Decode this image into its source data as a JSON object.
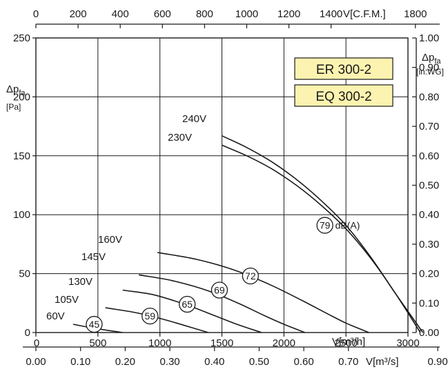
{
  "chart_data": {
    "type": "line",
    "frame": {
      "x_range": [
        0,
        3000
      ],
      "y_range": [
        0,
        250
      ]
    },
    "axes": {
      "bottom_primary": {
        "title": "V[m³/h]",
        "ticks": [
          {
            "v": 0,
            "label": "0"
          },
          {
            "v": 500,
            "label": "500"
          },
          {
            "v": 1000,
            "label": "1000"
          },
          {
            "v": 1500,
            "label": "1500"
          },
          {
            "v": 2000,
            "label": "2000"
          },
          {
            "v": 2500,
            "label": "2500"
          },
          {
            "v": 3000,
            "label": "3000"
          }
        ]
      },
      "bottom_secondary": {
        "title": "V[m³/s]",
        "ticks": [
          {
            "v": 0,
            "label": "0.00"
          },
          {
            "v": 360,
            "label": "0.10"
          },
          {
            "v": 720,
            "label": "0.20"
          },
          {
            "v": 1080,
            "label": "0.30"
          },
          {
            "v": 1440,
            "label": "0.40"
          },
          {
            "v": 1800,
            "label": "0.50"
          },
          {
            "v": 2160,
            "label": "0.60"
          },
          {
            "v": 2520,
            "label": "0.70"
          },
          {
            "v": 3240,
            "label": "0.90"
          }
        ]
      },
      "top": {
        "title": "V[C.F.M.]",
        "ticks": [
          {
            "v": 0,
            "label": "0"
          },
          {
            "v": 340,
            "label": "200"
          },
          {
            "v": 680,
            "label": "400"
          },
          {
            "v": 1020,
            "label": "600"
          },
          {
            "v": 1360,
            "label": "800"
          },
          {
            "v": 1700,
            "label": "1000"
          },
          {
            "v": 2040,
            "label": "1200"
          },
          {
            "v": 2380,
            "label": "1400"
          },
          {
            "v": 3060,
            "label": "1800"
          }
        ]
      },
      "left": {
        "title": "Δp",
        "title_sub": "fa",
        "unit": "[Pa]",
        "ticks": [
          {
            "v": 0,
            "label": "0"
          },
          {
            "v": 50,
            "label": "50"
          },
          {
            "v": 100,
            "label": "100"
          },
          {
            "v": 150,
            "label": "150"
          },
          {
            "v": 200,
            "label": "200"
          },
          {
            "v": 250,
            "label": "250"
          }
        ]
      },
      "right": {
        "title": "Δp",
        "title_sub": "fa",
        "unit": "[in.WG]",
        "ticks": [
          {
            "v": 0,
            "label": "0.00"
          },
          {
            "v": 25,
            "label": "0.10"
          },
          {
            "v": 50,
            "label": "0.20"
          },
          {
            "v": 75,
            "label": "0.30"
          },
          {
            "v": 100,
            "label": "0.40"
          },
          {
            "v": 125,
            "label": "0.50"
          },
          {
            "v": 150,
            "label": "0.60"
          },
          {
            "v": 175,
            "label": "0.70"
          },
          {
            "v": 200,
            "label": "0.80"
          },
          {
            "v": 225,
            "label": "0.90"
          },
          {
            "v": 250,
            "label": "1.00"
          }
        ]
      }
    },
    "grid": true,
    "model_labels": [
      "ER 300-2",
      "EQ 300-2"
    ],
    "series": [
      {
        "name": "240V",
        "x": [
          1500,
          1700,
          1900,
          2100,
          2300,
          2500,
          2700,
          2900,
          3120
        ],
        "y": [
          167,
          157,
          145,
          130,
          112,
          91,
          64,
          33,
          0
        ]
      },
      {
        "name": "230V",
        "x": [
          1500,
          1700,
          1900,
          2100,
          2300,
          2500,
          2700,
          2900,
          3100
        ],
        "y": [
          159,
          150,
          139,
          125,
          108,
          88,
          63,
          33,
          0
        ]
      },
      {
        "name": "160V",
        "x": [
          980,
          1300,
          1600,
          1900,
          2150,
          2350,
          2500,
          2685
        ],
        "y": [
          68,
          62,
          53,
          40,
          27,
          16,
          8,
          0
        ]
      },
      {
        "name": "145V",
        "x": [
          830,
          1100,
          1400,
          1650,
          1850,
          2000,
          2170
        ],
        "y": [
          49,
          44,
          35,
          24,
          14,
          7,
          0
        ]
      },
      {
        "name": "130V",
        "x": [
          700,
          950,
          1200,
          1450,
          1620,
          1820
        ],
        "y": [
          36,
          32,
          24,
          14,
          7,
          0
        ]
      },
      {
        "name": "105V",
        "x": [
          560,
          800,
          1000,
          1200,
          1390
        ],
        "y": [
          21,
          17,
          12,
          6,
          0
        ]
      },
      {
        "name": "60V",
        "x": [
          300,
          450,
          600,
          700
        ],
        "y": [
          7,
          4,
          1.5,
          0
        ]
      }
    ],
    "sound_markers": [
      {
        "label": "79",
        "x": 2330,
        "y": 91,
        "unit": "dB(A)"
      },
      {
        "label": "72",
        "x": 1730,
        "y": 48
      },
      {
        "label": "69",
        "x": 1480,
        "y": 36
      },
      {
        "label": "65",
        "x": 1220,
        "y": 24
      },
      {
        "label": "59",
        "x": 920,
        "y": 14
      },
      {
        "label": "45",
        "x": 470,
        "y": 7
      }
    ]
  }
}
